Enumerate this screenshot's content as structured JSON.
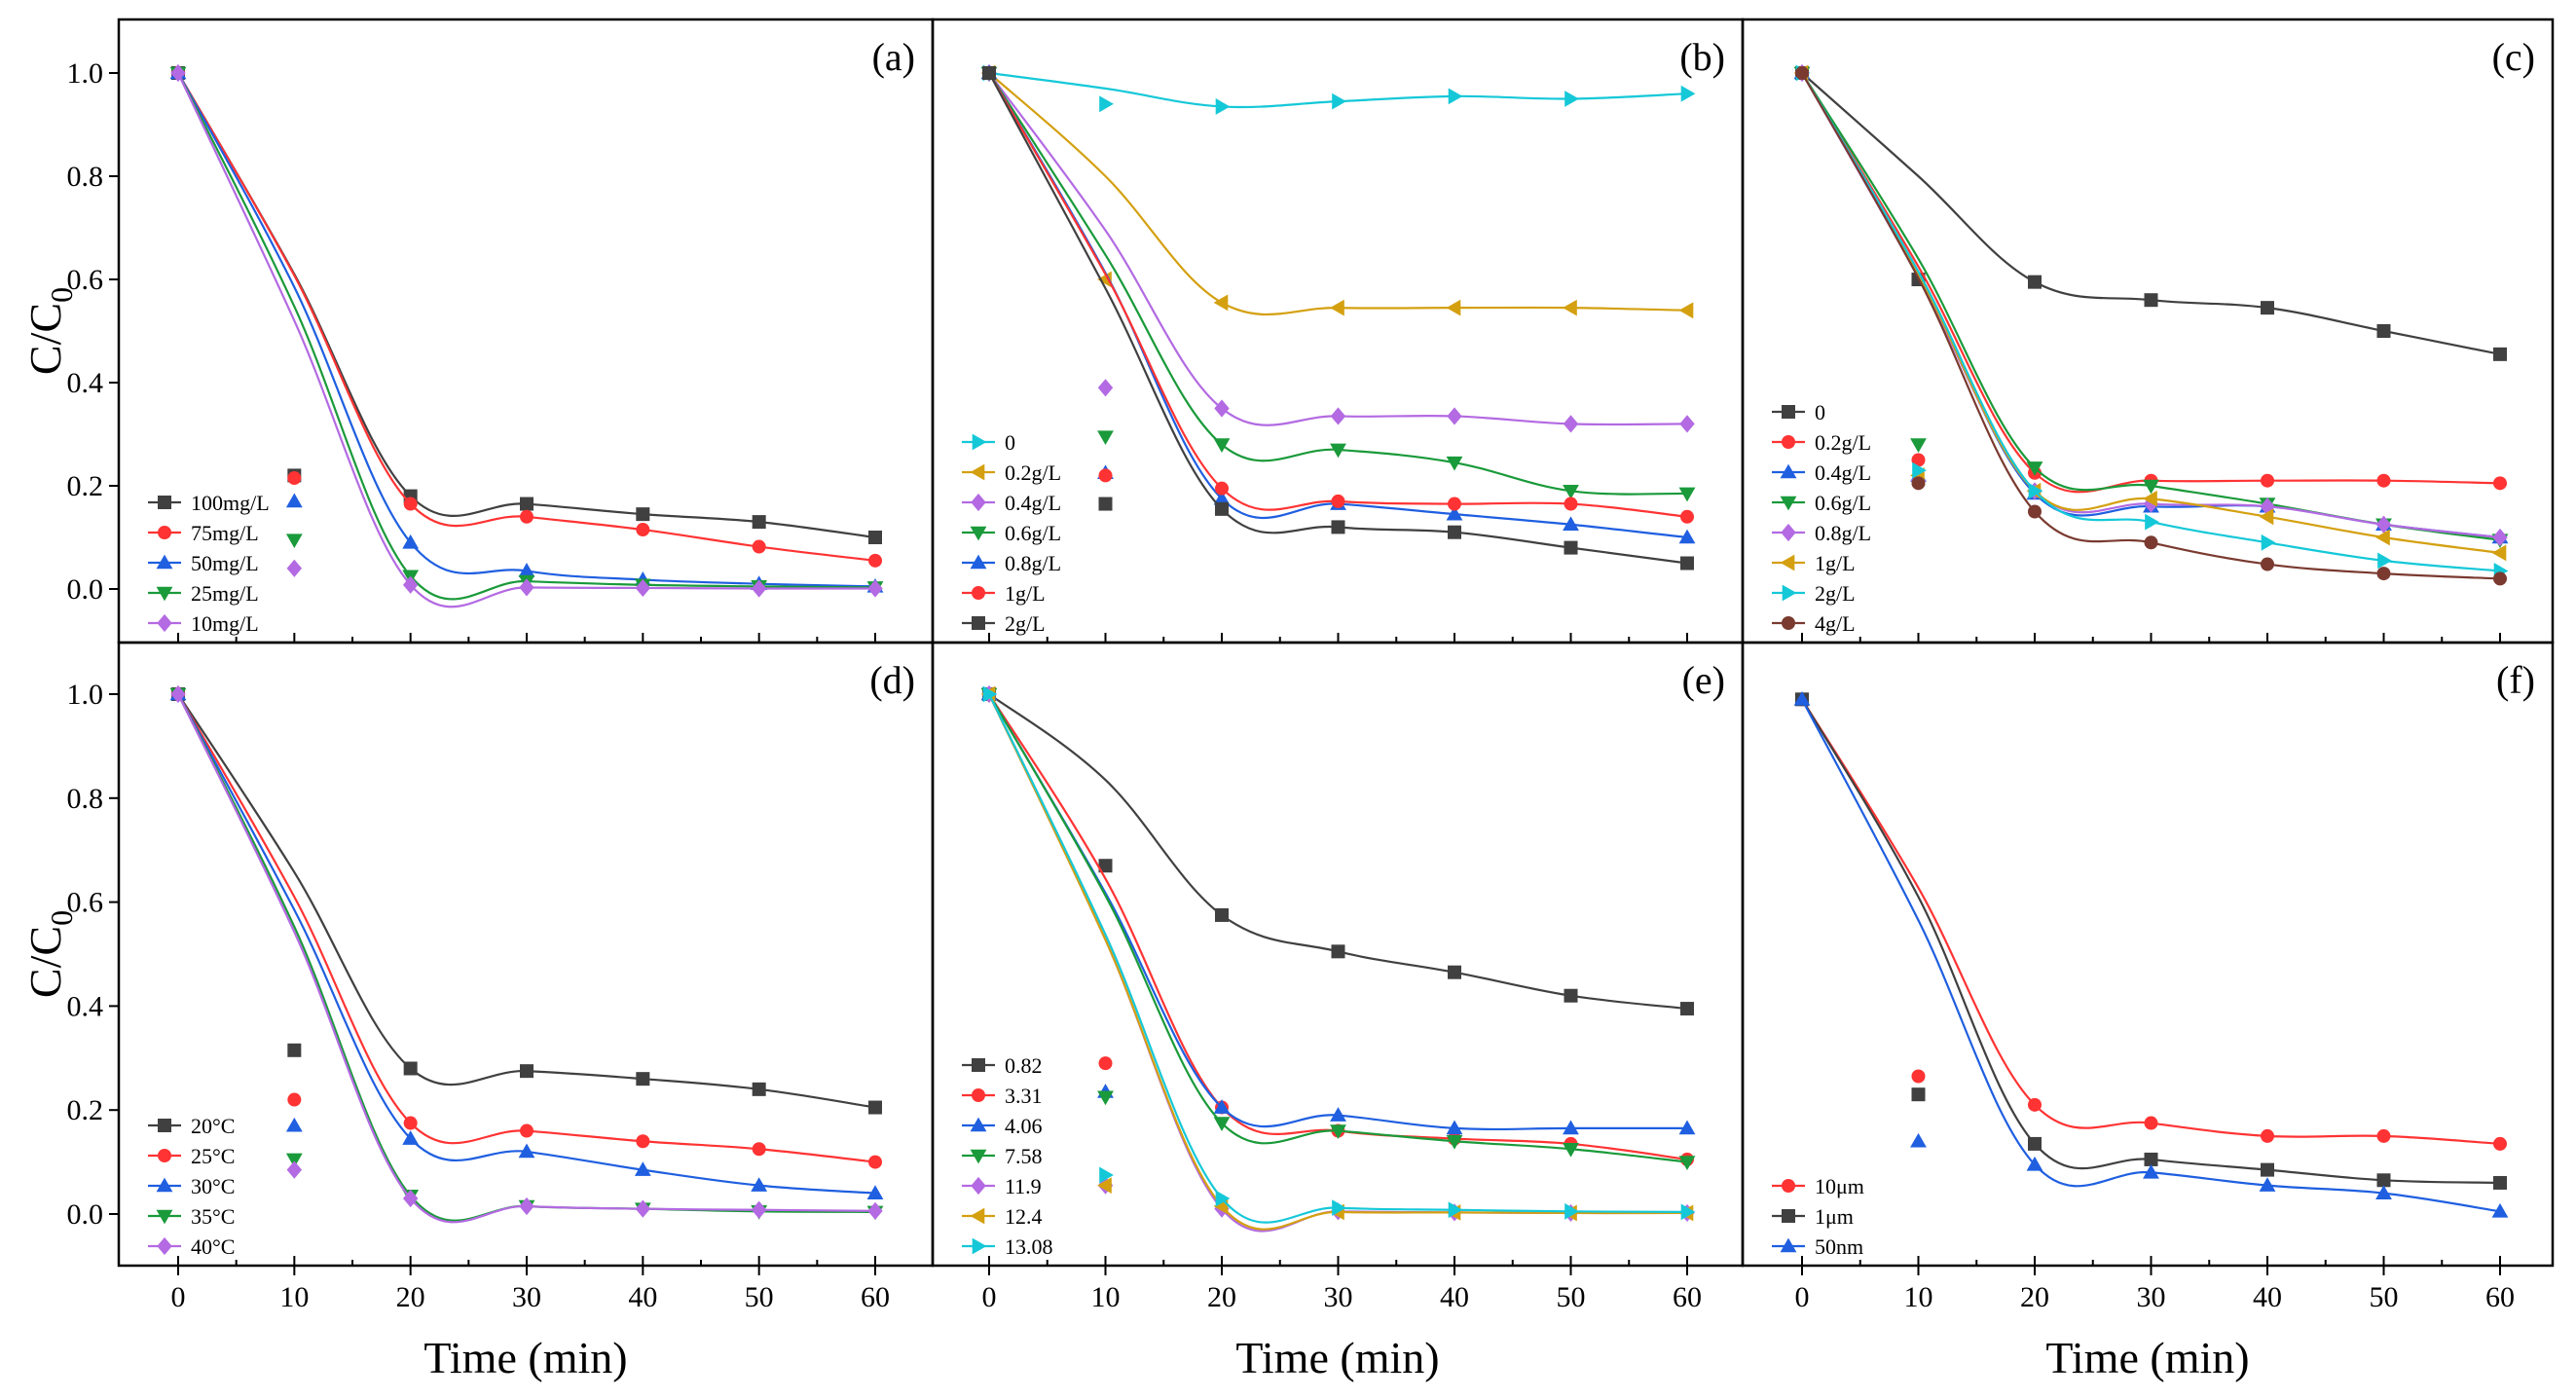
{
  "chart_data": [
    {
      "type": "line",
      "panel": "(a)",
      "xlabel": "",
      "ylabel": "C/C0",
      "xlim": [
        -5,
        65
      ],
      "ylim": [
        -0.04,
        1.1
      ],
      "x": [
        0,
        10,
        20,
        30,
        40,
        50,
        60
      ],
      "legend": "bottom-left",
      "series": [
        {
          "name": "100mg/L",
          "color": "#404040",
          "marker": "square",
          "values": [
            1.0,
            0.22,
            0.18,
            0.165,
            0.145,
            0.13,
            0.1
          ]
        },
        {
          "name": "75mg/L",
          "color": "#ff3333",
          "marker": "circle",
          "values": [
            1.0,
            0.215,
            0.165,
            0.14,
            0.115,
            0.082,
            0.055
          ]
        },
        {
          "name": "50mg/L",
          "color": "#1f5fe0",
          "marker": "triangle-up",
          "values": [
            1.0,
            0.17,
            0.09,
            0.035,
            0.018,
            0.01,
            0.005
          ]
        },
        {
          "name": "25mg/L",
          "color": "#1a9a3a",
          "marker": "triangle-down",
          "values": [
            1.0,
            0.095,
            0.025,
            0.015,
            0.008,
            0.005,
            0.003
          ]
        },
        {
          "name": "10mg/L",
          "color": "#b36ae2",
          "marker": "diamond",
          "values": [
            1.0,
            0.04,
            0.008,
            0.003,
            0.002,
            0.001,
            0.001
          ]
        }
      ]
    },
    {
      "type": "line",
      "panel": "(b)",
      "xlabel": "",
      "ylabel": "",
      "xlim": [
        -5,
        65
      ],
      "ylim": [
        -0.04,
        1.1
      ],
      "x": [
        0,
        10,
        20,
        30,
        40,
        50,
        60
      ],
      "legend": "bottom-left",
      "series": [
        {
          "name": "0",
          "color": "#15c8d8",
          "marker": "triangle-right",
          "values": [
            1.0,
            0.94,
            0.935,
            0.945,
            0.955,
            0.95,
            0.96
          ]
        },
        {
          "name": "0.2g/L",
          "color": "#d4a010",
          "marker": "triangle-left",
          "values": [
            1.0,
            0.6,
            0.555,
            0.545,
            0.545,
            0.545,
            0.54
          ]
        },
        {
          "name": "0.4g/L",
          "color": "#b36ae2",
          "marker": "diamond",
          "values": [
            1.0,
            0.39,
            0.35,
            0.335,
            0.335,
            0.32,
            0.32
          ]
        },
        {
          "name": "0.6g/L",
          "color": "#1a9a3a",
          "marker": "triangle-down",
          "values": [
            1.0,
            0.295,
            0.28,
            0.27,
            0.245,
            0.19,
            0.185
          ]
        },
        {
          "name": "0.8g/L",
          "color": "#1f5fe0",
          "marker": "triangle-up",
          "values": [
            1.0,
            0.225,
            0.175,
            0.165,
            0.145,
            0.125,
            0.1
          ]
        },
        {
          "name": "1g/L",
          "color": "#ff3333",
          "marker": "circle",
          "values": [
            1.0,
            0.22,
            0.195,
            0.17,
            0.165,
            0.165,
            0.14
          ]
        },
        {
          "name": "2g/L",
          "color": "#404040",
          "marker": "square",
          "values": [
            1.0,
            0.165,
            0.155,
            0.12,
            0.11,
            0.08,
            0.05
          ]
        }
      ]
    },
    {
      "type": "line",
      "panel": "(c)",
      "xlabel": "",
      "ylabel": "",
      "xlim": [
        -5,
        65
      ],
      "ylim": [
        -0.04,
        1.1
      ],
      "x": [
        0,
        10,
        20,
        30,
        40,
        50,
        60
      ],
      "legend": "bottom-left",
      "series": [
        {
          "name": "0",
          "color": "#404040",
          "marker": "square",
          "values": [
            1.0,
            0.6,
            0.595,
            0.56,
            0.545,
            0.5,
            0.455
          ]
        },
        {
          "name": "0.2g/L",
          "color": "#ff3333",
          "marker": "circle",
          "values": [
            1.0,
            0.25,
            0.225,
            0.21,
            0.21,
            0.21,
            0.205
          ]
        },
        {
          "name": "0.4g/L",
          "color": "#1f5fe0",
          "marker": "triangle-up",
          "values": [
            1.0,
            0.22,
            0.185,
            0.16,
            0.16,
            0.125,
            0.1
          ]
        },
        {
          "name": "0.6g/L",
          "color": "#1a9a3a",
          "marker": "triangle-down",
          "values": [
            1.0,
            0.28,
            0.235,
            0.2,
            0.165,
            0.125,
            0.095
          ]
        },
        {
          "name": "0.8g/L",
          "color": "#b36ae2",
          "marker": "diamond",
          "values": [
            1.0,
            0.21,
            0.19,
            0.165,
            0.16,
            0.125,
            0.1
          ]
        },
        {
          "name": "1g/L",
          "color": "#d4a010",
          "marker": "triangle-left",
          "values": [
            1.0,
            0.22,
            0.19,
            0.175,
            0.14,
            0.1,
            0.07
          ]
        },
        {
          "name": "2g/L",
          "color": "#15c8d8",
          "marker": "triangle-right",
          "values": [
            1.0,
            0.23,
            0.19,
            0.13,
            0.09,
            0.055,
            0.035
          ]
        },
        {
          "name": "4g/L",
          "color": "#7a3a30",
          "marker": "circle",
          "values": [
            1.0,
            0.205,
            0.15,
            0.09,
            0.048,
            0.03,
            0.02
          ]
        }
      ]
    },
    {
      "type": "line",
      "panel": "(d)",
      "xlabel": "Time (min)",
      "ylabel": "C/C0",
      "xlim": [
        -5,
        65
      ],
      "ylim": [
        -0.1,
        1.1
      ],
      "x": [
        0,
        10,
        20,
        30,
        40,
        50,
        60
      ],
      "legend": "bottom-left",
      "series": [
        {
          "name": "20°C",
          "color": "#404040",
          "marker": "square",
          "values": [
            1.0,
            0.315,
            0.28,
            0.275,
            0.26,
            0.24,
            0.205
          ]
        },
        {
          "name": "25°C",
          "color": "#ff3333",
          "marker": "circle",
          "values": [
            1.0,
            0.22,
            0.175,
            0.16,
            0.14,
            0.125,
            0.1
          ]
        },
        {
          "name": "30°C",
          "color": "#1f5fe0",
          "marker": "triangle-up",
          "values": [
            1.0,
            0.17,
            0.145,
            0.12,
            0.085,
            0.055,
            0.04
          ]
        },
        {
          "name": "35°C",
          "color": "#1a9a3a",
          "marker": "triangle-down",
          "values": [
            1.0,
            0.105,
            0.035,
            0.015,
            0.01,
            0.005,
            0.004
          ]
        },
        {
          "name": "40°C",
          "color": "#b36ae2",
          "marker": "diamond",
          "values": [
            1.0,
            0.085,
            0.03,
            0.015,
            0.01,
            0.008,
            0.006
          ]
        }
      ]
    },
    {
      "type": "line",
      "panel": "(e)",
      "xlabel": "Time (min)",
      "ylabel": "",
      "xlim": [
        -5,
        65
      ],
      "ylim": [
        -0.1,
        1.1
      ],
      "x": [
        0,
        10,
        20,
        30,
        40,
        50,
        60
      ],
      "legend": "bottom-left",
      "series": [
        {
          "name": "0.82",
          "color": "#404040",
          "marker": "square",
          "values": [
            1.0,
            0.67,
            0.575,
            0.505,
            0.465,
            0.42,
            0.395
          ]
        },
        {
          "name": "3.31",
          "color": "#ff3333",
          "marker": "circle",
          "values": [
            1.0,
            0.29,
            0.205,
            0.16,
            0.145,
            0.135,
            0.105
          ]
        },
        {
          "name": "4.06",
          "color": "#1f5fe0",
          "marker": "triangle-up",
          "values": [
            1.0,
            0.235,
            0.205,
            0.19,
            0.165,
            0.165,
            0.165
          ]
        },
        {
          "name": "7.58",
          "color": "#1a9a3a",
          "marker": "triangle-down",
          "values": [
            1.0,
            0.225,
            0.175,
            0.16,
            0.14,
            0.125,
            0.1
          ]
        },
        {
          "name": "11.9",
          "color": "#b36ae2",
          "marker": "diamond",
          "values": [
            1.0,
            0.055,
            0.01,
            0.005,
            0.003,
            0.002,
            0.002
          ]
        },
        {
          "name": "12.4",
          "color": "#d4a010",
          "marker": "triangle-left",
          "values": [
            1.0,
            0.055,
            0.015,
            0.004,
            0.003,
            0.002,
            0.002
          ]
        },
        {
          "name": "13.08",
          "color": "#15c8d8",
          "marker": "triangle-right",
          "values": [
            1.0,
            0.075,
            0.03,
            0.012,
            0.008,
            0.005,
            0.004
          ]
        }
      ]
    },
    {
      "type": "line",
      "panel": "(f)",
      "xlabel": "Time (min)",
      "ylabel": "",
      "xlim": [
        -5,
        65
      ],
      "ylim": [
        -0.1,
        1.1
      ],
      "x": [
        0,
        10,
        20,
        30,
        40,
        50,
        60
      ],
      "legend": "bottom-left",
      "series": [
        {
          "name": "10μm",
          "color": "#ff3333",
          "marker": "circle",
          "values": [
            0.99,
            0.265,
            0.21,
            0.175,
            0.15,
            0.15,
            0.135
          ]
        },
        {
          "name": "1μm",
          "color": "#404040",
          "marker": "square",
          "values": [
            0.99,
            0.23,
            0.135,
            0.105,
            0.085,
            0.065,
            0.06
          ]
        },
        {
          "name": "50nm",
          "color": "#1f5fe0",
          "marker": "triangle-up",
          "values": [
            0.99,
            0.14,
            0.095,
            0.08,
            0.055,
            0.04,
            0.005
          ]
        }
      ]
    }
  ]
}
